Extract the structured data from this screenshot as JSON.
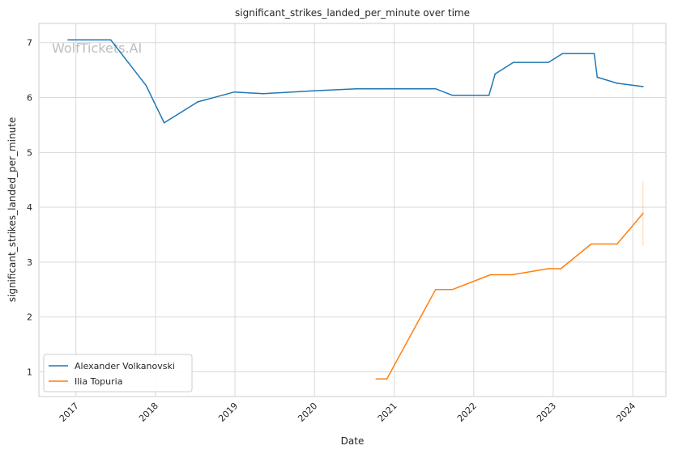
{
  "chart_data": {
    "type": "line",
    "title": "significant_strikes_landed_per_minute over time",
    "xlabel": "Date",
    "ylabel": "significant_strikes_landed_per_minute",
    "watermark": "WolfTickets.AI",
    "xlim": [
      "2016-07-15",
      "2024-06-01"
    ],
    "ylim": [
      0.55,
      7.35
    ],
    "x_ticks": [
      "2017",
      "2018",
      "2019",
      "2020",
      "2021",
      "2022",
      "2023",
      "2024"
    ],
    "y_ticks": [
      1,
      2,
      3,
      4,
      5,
      6,
      7
    ],
    "grid": true,
    "legend_position": "lower-left",
    "series": [
      {
        "name": "Alexander Volkanovski",
        "color": "#1f77b4",
        "points": [
          {
            "x": "2016-11-26",
            "y": 7.05
          },
          {
            "x": "2017-06-10",
            "y": 7.05
          },
          {
            "x": "2017-11-19",
            "y": 6.22
          },
          {
            "x": "2018-02-10",
            "y": 5.54
          },
          {
            "x": "2018-07-14",
            "y": 5.92
          },
          {
            "x": "2018-12-29",
            "y": 6.1
          },
          {
            "x": "2019-05-11",
            "y": 6.07
          },
          {
            "x": "2019-12-14",
            "y": 6.12
          },
          {
            "x": "2020-07-12",
            "y": 6.16
          },
          {
            "x": "2021-07-10",
            "y": 6.16
          },
          {
            "x": "2021-09-25",
            "y": 6.04
          },
          {
            "x": "2022-03-12",
            "y": 6.04
          },
          {
            "x": "2022-04-09",
            "y": 6.43
          },
          {
            "x": "2022-07-02",
            "y": 6.64
          },
          {
            "x": "2022-12-10",
            "y": 6.64
          },
          {
            "x": "2023-02-12",
            "y": 6.8
          },
          {
            "x": "2023-07-08",
            "y": 6.8
          },
          {
            "x": "2023-07-22",
            "y": 6.37
          },
          {
            "x": "2023-10-21",
            "y": 6.26
          },
          {
            "x": "2024-02-17",
            "y": 6.2
          }
        ]
      },
      {
        "name": "Ilia Topuria",
        "color": "#ff7f0e",
        "points": [
          {
            "x": "2020-10-10",
            "y": 0.87
          },
          {
            "x": "2020-11-28",
            "y": 0.87
          },
          {
            "x": "2021-07-10",
            "y": 2.5
          },
          {
            "x": "2021-09-25",
            "y": 2.5
          },
          {
            "x": "2022-03-19",
            "y": 2.77
          },
          {
            "x": "2022-06-25",
            "y": 2.77
          },
          {
            "x": "2022-12-10",
            "y": 2.88
          },
          {
            "x": "2023-02-05",
            "y": 2.88
          },
          {
            "x": "2023-06-24",
            "y": 3.33
          },
          {
            "x": "2023-10-21",
            "y": 3.33
          },
          {
            "x": "2024-02-17",
            "y": 3.89
          }
        ],
        "error_bar": {
          "x": "2024-02-17",
          "low": 3.3,
          "high": 4.48
        }
      }
    ]
  }
}
